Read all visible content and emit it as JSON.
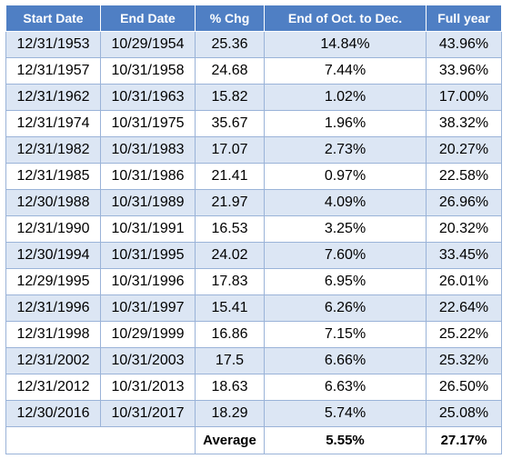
{
  "table": {
    "headers": [
      "Start Date",
      "End Date",
      "% Chg",
      "End of Oct. to Dec.",
      "Full year"
    ],
    "rows": [
      [
        "12/31/1953",
        "10/29/1954",
        "25.36",
        "14.84%",
        "43.96%"
      ],
      [
        "12/31/1957",
        "10/31/1958",
        "24.68",
        "7.44%",
        "33.96%"
      ],
      [
        "12/31/1962",
        "10/31/1963",
        "15.82",
        "1.02%",
        "17.00%"
      ],
      [
        "12/31/1974",
        "10/31/1975",
        "35.67",
        "1.96%",
        "38.32%"
      ],
      [
        "12/31/1982",
        "10/31/1983",
        "17.07",
        "2.73%",
        "20.27%"
      ],
      [
        "12/31/1985",
        "10/31/1986",
        "21.41",
        "0.97%",
        "22.58%"
      ],
      [
        "12/30/1988",
        "10/31/1989",
        "21.97",
        "4.09%",
        "26.96%"
      ],
      [
        "12/31/1990",
        "10/31/1991",
        "16.53",
        "3.25%",
        "20.32%"
      ],
      [
        "12/30/1994",
        "10/31/1995",
        "24.02",
        "7.60%",
        "33.45%"
      ],
      [
        "12/29/1995",
        "10/31/1996",
        "17.83",
        "6.95%",
        "26.01%"
      ],
      [
        "12/31/1996",
        "10/31/1997",
        "15.41",
        "6.26%",
        "22.64%"
      ],
      [
        "12/31/1998",
        "10/29/1999",
        "16.86",
        "7.15%",
        "25.22%"
      ],
      [
        "12/31/2002",
        "10/31/2003",
        "17.5",
        "6.66%",
        "25.32%"
      ],
      [
        "12/31/2012",
        "10/31/2013",
        "18.63",
        "6.63%",
        "26.50%"
      ],
      [
        "12/30/2016",
        "10/31/2017",
        "18.29",
        "5.74%",
        "25.08%"
      ]
    ],
    "footer": {
      "label": "Average",
      "oct_to_dec": "5.55%",
      "full_year": "27.17%"
    }
  },
  "colors": {
    "header_bg": "#4f7fc4",
    "header_text": "#ffffff",
    "band_row": "#dce6f4",
    "plain_row": "#ffffff",
    "grid": "#9ab3d8"
  }
}
